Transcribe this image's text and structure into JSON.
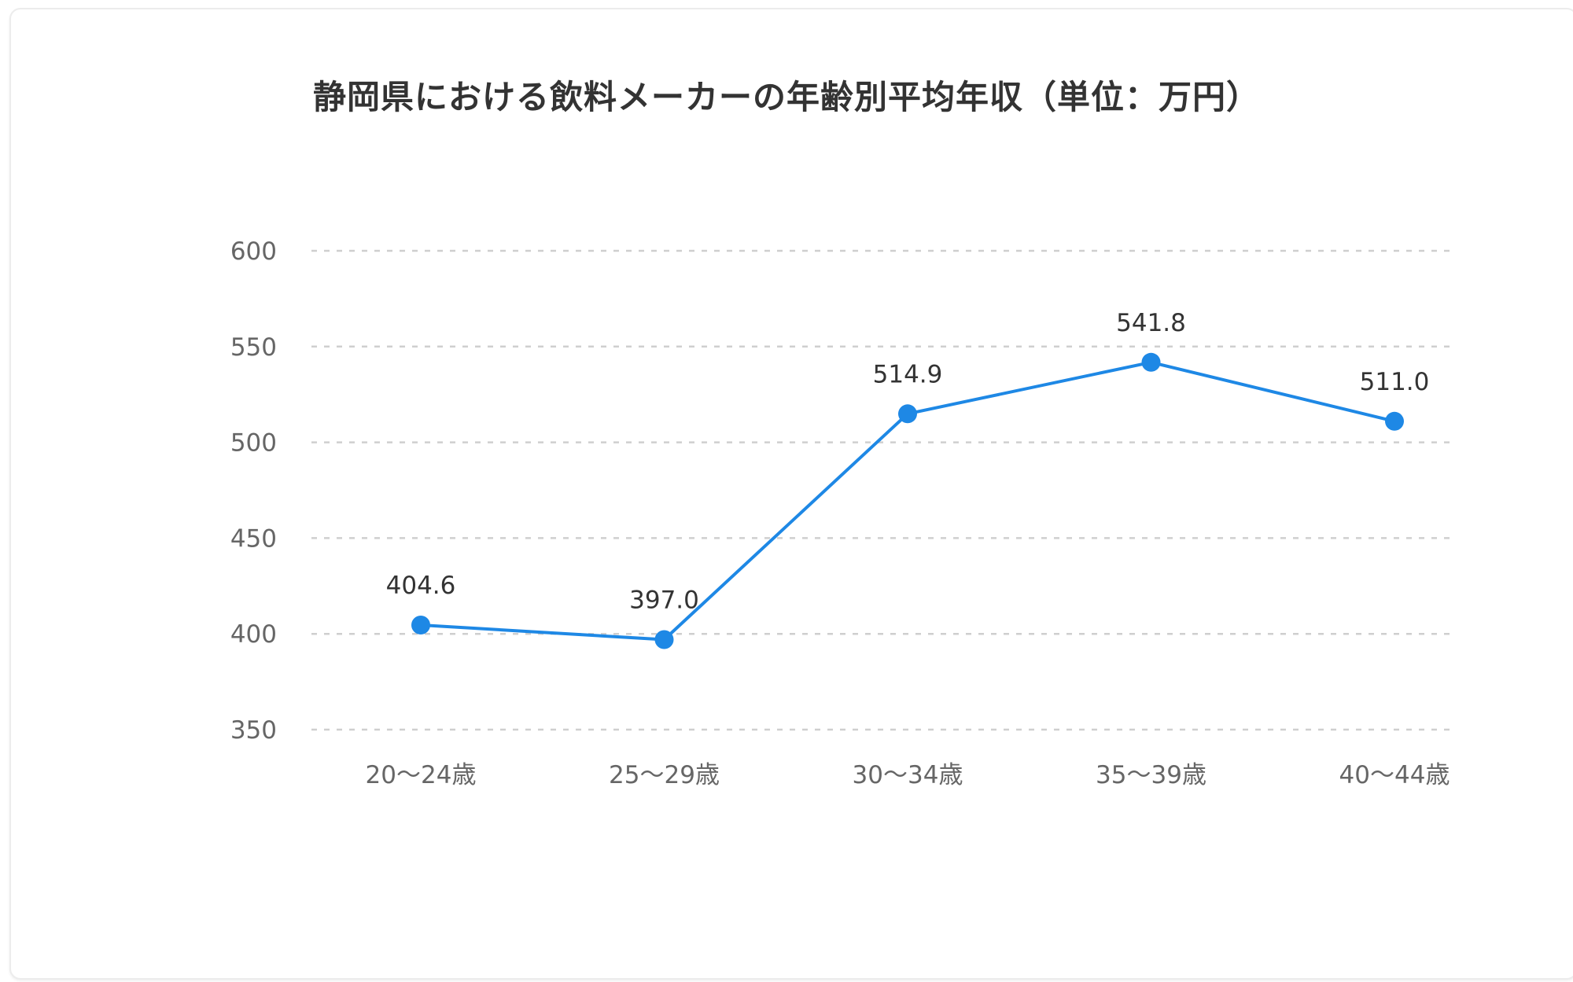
{
  "chart_data": {
    "type": "line",
    "title": "静岡県における飲料メーカーの年齢別平均年収（単位：万円）",
    "xlabel": "",
    "ylabel": "",
    "categories": [
      "20～24歳",
      "25～29歳",
      "30～34歳",
      "35～39歳",
      "40～44歳"
    ],
    "series": [
      {
        "values": [
          404.6,
          397.0,
          514.9,
          541.8,
          511.0
        ],
        "labels": [
          "404.6",
          "397.0",
          "514.9",
          "541.8",
          "511.0"
        ],
        "color": "#1e88e5"
      }
    ],
    "ylim": [
      350,
      600
    ],
    "yticks": [
      350,
      400,
      450,
      500,
      550,
      600
    ],
    "ytick_labels": [
      "350",
      "400",
      "450",
      "500",
      "550",
      "600"
    ],
    "grid": true,
    "grid_style": "dashed",
    "legend": "none"
  }
}
